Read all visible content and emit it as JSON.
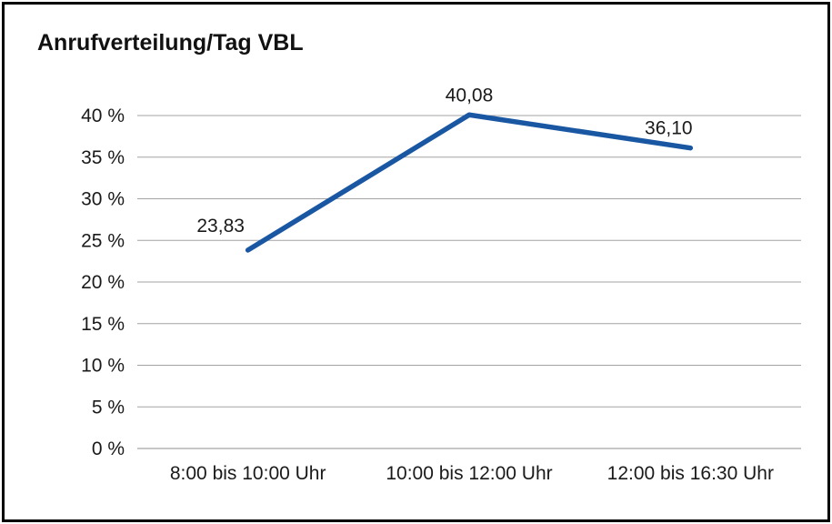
{
  "page": {
    "background": "#ffffff",
    "border_color": "#000000"
  },
  "chart_data": {
    "type": "line",
    "title": "Anrufverteilung/Tag VBL",
    "categories": [
      "8:00 bis 10:00 Uhr",
      "10:00 bis 12:00 Uhr",
      "12:00 bis 16:30 Uhr"
    ],
    "values": [
      23.83,
      40.08,
      36.1
    ],
    "data_labels": [
      "23,83",
      "40,08",
      "36,10"
    ],
    "xlabel": "",
    "ylabel": "",
    "ylim": [
      0,
      40
    ],
    "ytick_step": 5,
    "ytick_labels": [
      "0 %",
      "5 %",
      "10 %",
      "15 %",
      "20 %",
      "25 %",
      "30 %",
      "35 %",
      "40 %"
    ],
    "grid": true,
    "legend_position": "none",
    "line_color": "#1a57a3",
    "gridline_color": "#a3a3a3",
    "axis_line_color": "#8c8c8c",
    "text_color": "#1a1a1a"
  }
}
